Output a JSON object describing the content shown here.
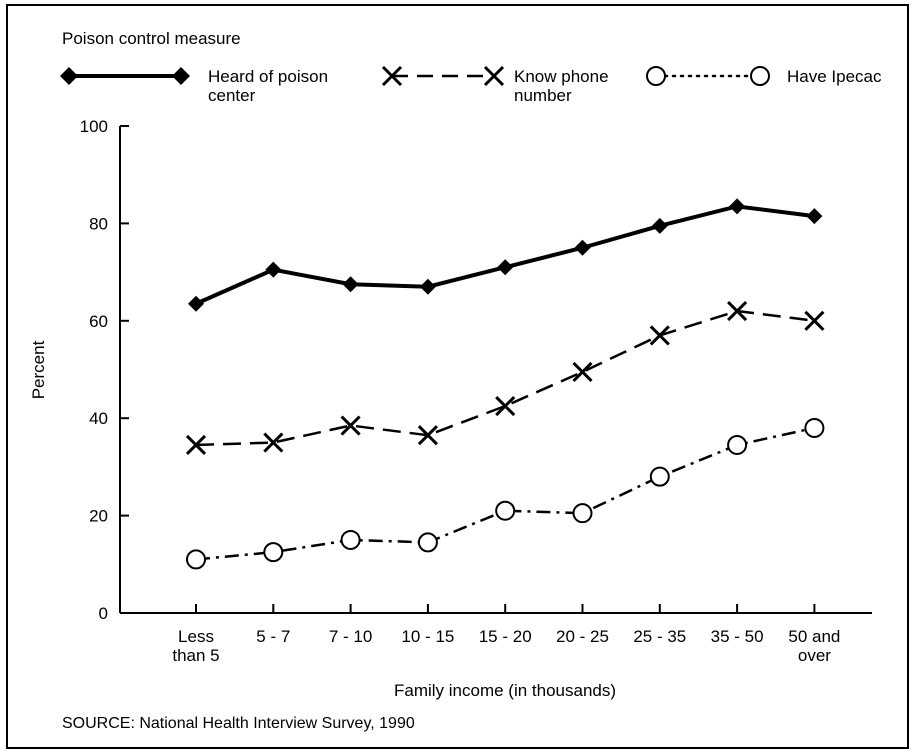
{
  "legend": {
    "title": "Poison control measure",
    "items": [
      {
        "line1": "Heard of poison",
        "line2": "center"
      },
      {
        "line1": "Know phone",
        "line2": "number"
      },
      {
        "line1": "Have Ipecac",
        "line2": ""
      }
    ]
  },
  "source": "SOURCE: National Health Interview Survey, 1990",
  "chart_data": {
    "type": "line",
    "title": "",
    "xlabel": "Family income (in thousands)",
    "ylabel": "Percent",
    "ylim": [
      0,
      100
    ],
    "yticks": [
      0,
      20,
      40,
      60,
      80,
      100
    ],
    "grid": false,
    "legend_position": "top",
    "categories": [
      [
        "Less",
        "than 5"
      ],
      [
        "5 - 7"
      ],
      [
        "7 - 10"
      ],
      [
        "10 - 15"
      ],
      [
        "15 - 20"
      ],
      [
        "20 - 25"
      ],
      [
        "25 - 35"
      ],
      [
        "35 - 50"
      ],
      [
        "50 and",
        "over"
      ]
    ],
    "series": [
      {
        "name": "Heard of poison center",
        "marker": "diamond",
        "line": "solid",
        "values": [
          63.5,
          70.5,
          67.5,
          67.0,
          71.0,
          75.0,
          79.5,
          83.5,
          81.5
        ]
      },
      {
        "name": "Know phone number",
        "marker": "x",
        "line": "dashed",
        "values": [
          34.5,
          35.0,
          38.5,
          36.5,
          42.5,
          49.5,
          57.0,
          62.0,
          60.0
        ]
      },
      {
        "name": "Have Ipecac",
        "marker": "circle",
        "line": "dotdash",
        "values": [
          11.0,
          12.5,
          15.0,
          14.5,
          21.0,
          20.5,
          28.0,
          34.5,
          38.0
        ]
      }
    ]
  }
}
